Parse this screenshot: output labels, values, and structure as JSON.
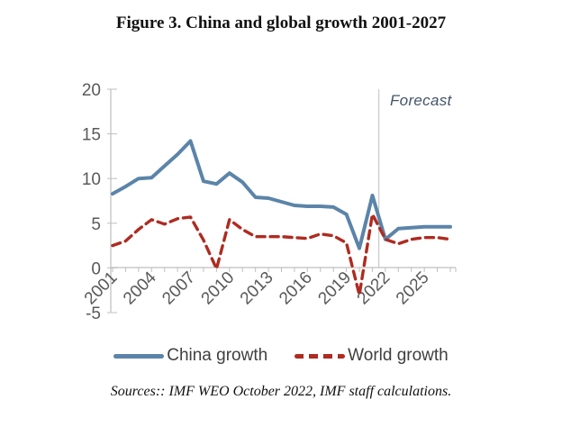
{
  "title": "Figure 3. China and global growth 2001-2027",
  "source": "Sources:: IMF WEO October 2022, IMF staff calculations.",
  "chart_data": {
    "type": "line",
    "x": [
      2001,
      2002,
      2003,
      2004,
      2005,
      2006,
      2007,
      2008,
      2009,
      2010,
      2011,
      2012,
      2013,
      2014,
      2015,
      2016,
      2017,
      2018,
      2019,
      2020,
      2021,
      2022,
      2023,
      2024,
      2025,
      2026,
      2027
    ],
    "series": [
      {
        "name": "China growth",
        "style": "solid",
        "color": "#5B84A9",
        "values": [
          8.3,
          9.1,
          10.0,
          10.1,
          11.4,
          12.7,
          14.2,
          9.7,
          9.4,
          10.6,
          9.6,
          7.9,
          7.8,
          7.4,
          7.0,
          6.9,
          6.9,
          6.8,
          6.0,
          2.2,
          8.1,
          3.2,
          4.4,
          4.5,
          4.6,
          4.6,
          4.6
        ]
      },
      {
        "name": "World growth",
        "style": "dashed",
        "color": "#AF2B21",
        "values": [
          2.5,
          3.0,
          4.3,
          5.4,
          4.9,
          5.5,
          5.7,
          3.1,
          -0.1,
          5.4,
          4.3,
          3.5,
          3.5,
          3.5,
          3.4,
          3.3,
          3.8,
          3.6,
          2.8,
          -3.0,
          6.0,
          3.2,
          2.7,
          3.2,
          3.4,
          3.4,
          3.2
        ]
      }
    ],
    "ylim": [
      -5,
      20
    ],
    "y_ticks": [
      20,
      15,
      10,
      5,
      0,
      -5
    ],
    "x_tick_labels": [
      2001,
      2004,
      2007,
      2010,
      2013,
      2016,
      2019,
      2022,
      2025
    ],
    "annotation": "Forecast",
    "annotation_color": "#44546A",
    "forecast_start": 2022,
    "axis_color": "#BFBFBF",
    "tick_label_color": "#595959",
    "legend_position": "bottom",
    "grid": false
  }
}
